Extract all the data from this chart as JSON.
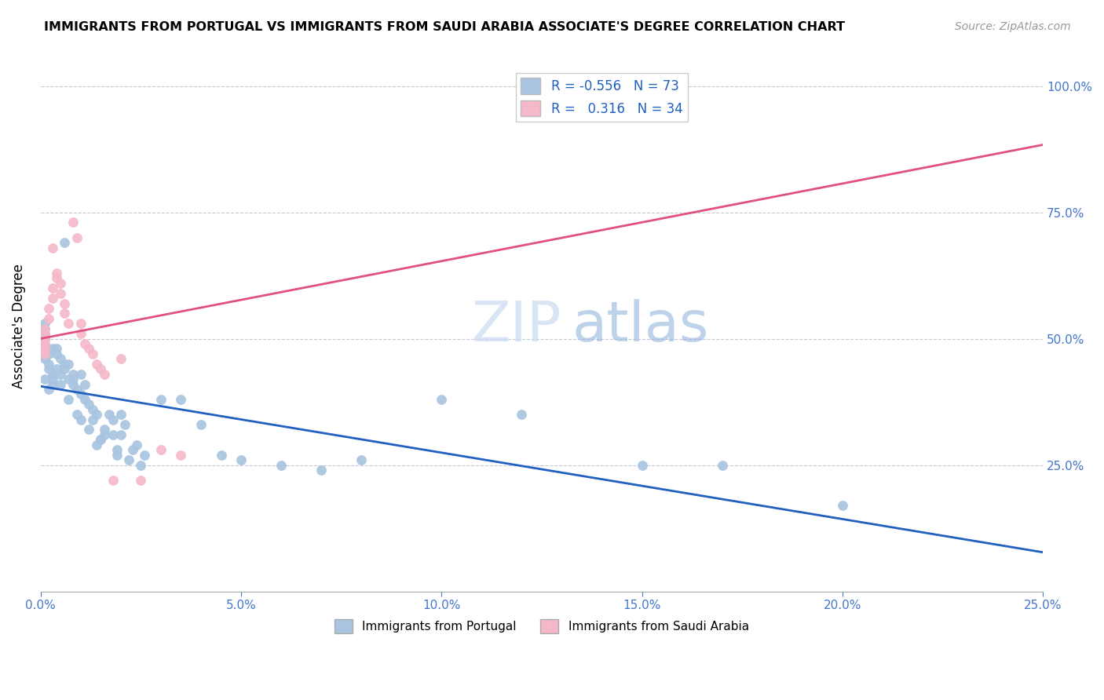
{
  "title": "IMMIGRANTS FROM PORTUGAL VS IMMIGRANTS FROM SAUDI ARABIA ASSOCIATE'S DEGREE CORRELATION CHART",
  "source": "Source: ZipAtlas.com",
  "ylabel": "Associate's Degree",
  "blue_R": -0.556,
  "blue_N": 73,
  "pink_R": 0.316,
  "pink_N": 34,
  "blue_color": "#a8c4e0",
  "pink_color": "#f4b8c8",
  "blue_line_color": "#2060c0",
  "pink_line_color": "#e05080",
  "watermark_zip": "ZIP",
  "watermark_atlas": "atlas",
  "blue_points_x": [
    0.001,
    0.002,
    0.003,
    0.001,
    0.002,
    0.001,
    0.001,
    0.001,
    0.002,
    0.001,
    0.001,
    0.003,
    0.003,
    0.002,
    0.004,
    0.005,
    0.006,
    0.004,
    0.004,
    0.003,
    0.005,
    0.006,
    0.005,
    0.007,
    0.008,
    0.007,
    0.006,
    0.008,
    0.009,
    0.01,
    0.008,
    0.007,
    0.01,
    0.011,
    0.009,
    0.012,
    0.01,
    0.013,
    0.011,
    0.014,
    0.012,
    0.015,
    0.013,
    0.016,
    0.014,
    0.017,
    0.015,
    0.018,
    0.016,
    0.019,
    0.02,
    0.018,
    0.021,
    0.019,
    0.022,
    0.02,
    0.023,
    0.024,
    0.025,
    0.026,
    0.03,
    0.035,
    0.04,
    0.045,
    0.05,
    0.06,
    0.07,
    0.08,
    0.1,
    0.12,
    0.15,
    0.17,
    0.2
  ],
  "blue_points_y": [
    0.49,
    0.47,
    0.48,
    0.46,
    0.45,
    0.51,
    0.52,
    0.5,
    0.44,
    0.53,
    0.42,
    0.43,
    0.41,
    0.4,
    0.47,
    0.46,
    0.45,
    0.48,
    0.44,
    0.42,
    0.43,
    0.69,
    0.41,
    0.45,
    0.43,
    0.42,
    0.44,
    0.41,
    0.4,
    0.39,
    0.42,
    0.38,
    0.43,
    0.41,
    0.35,
    0.37,
    0.34,
    0.36,
    0.38,
    0.35,
    0.32,
    0.3,
    0.34,
    0.31,
    0.29,
    0.35,
    0.3,
    0.31,
    0.32,
    0.28,
    0.35,
    0.34,
    0.33,
    0.27,
    0.26,
    0.31,
    0.28,
    0.29,
    0.25,
    0.27,
    0.38,
    0.38,
    0.33,
    0.27,
    0.26,
    0.25,
    0.24,
    0.26,
    0.38,
    0.35,
    0.25,
    0.25,
    0.17
  ],
  "pink_points_x": [
    0.001,
    0.001,
    0.001,
    0.001,
    0.001,
    0.001,
    0.002,
    0.002,
    0.003,
    0.003,
    0.003,
    0.004,
    0.004,
    0.005,
    0.005,
    0.006,
    0.006,
    0.007,
    0.008,
    0.009,
    0.01,
    0.01,
    0.011,
    0.012,
    0.013,
    0.014,
    0.015,
    0.016,
    0.018,
    0.02,
    0.025,
    0.03,
    0.035,
    0.12
  ],
  "pink_points_y": [
    0.52,
    0.51,
    0.5,
    0.49,
    0.48,
    0.47,
    0.56,
    0.54,
    0.6,
    0.58,
    0.68,
    0.63,
    0.62,
    0.61,
    0.59,
    0.57,
    0.55,
    0.53,
    0.73,
    0.7,
    0.53,
    0.51,
    0.49,
    0.48,
    0.47,
    0.45,
    0.44,
    0.43,
    0.22,
    0.46,
    0.22,
    0.28,
    0.27,
    0.94
  ],
  "xlim": [
    0.0,
    0.25
  ],
  "ylim": [
    0.0,
    1.05
  ],
  "yticks": [
    0.0,
    0.25,
    0.5,
    0.75,
    1.0
  ],
  "xticks": [
    0.0,
    0.05,
    0.1,
    0.15,
    0.2,
    0.25
  ],
  "xtick_labels": [
    "0.0%",
    "5.0%",
    "10.0%",
    "15.0%",
    "20.0%",
    "25.0%"
  ],
  "ytick_labels_right": [
    "",
    "25.0%",
    "50.0%",
    "75.0%",
    "100.0%"
  ]
}
